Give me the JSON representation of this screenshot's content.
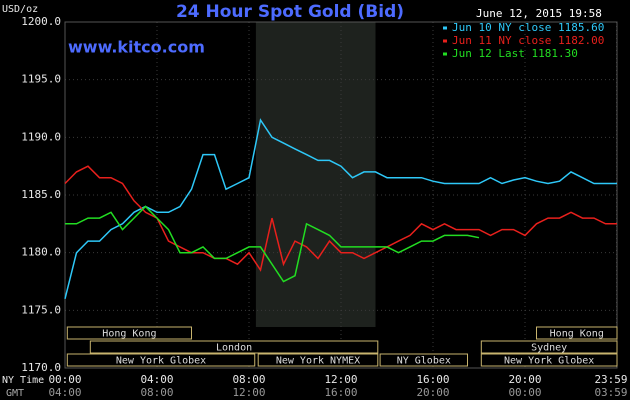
{
  "chart_data": {
    "type": "line",
    "title": "24 Hour Spot Gold (Bid)",
    "subtitle": "www.kitco.com",
    "timestamp": "June 12, 2015 19:58",
    "y_label": "USD/oz",
    "x_label": "NY Time",
    "x2_label": "GMT",
    "x": [
      0,
      0.5,
      1,
      1.5,
      2,
      2.5,
      3,
      3.5,
      4,
      4.5,
      5,
      5.5,
      6,
      6.5,
      7,
      7.5,
      8,
      8.5,
      9,
      9.5,
      10,
      10.5,
      11,
      11.5,
      12,
      12.5,
      13,
      13.5,
      14,
      14.5,
      15,
      15.5,
      16,
      16.5,
      17,
      17.5,
      18,
      18.5,
      19,
      19.5,
      20,
      20.5,
      21,
      21.5,
      22,
      22.5,
      23,
      23.5,
      24
    ],
    "xlim": [
      0,
      24
    ],
    "xticks": [
      {
        "value": 0,
        "label": "00:00"
      },
      {
        "value": 4,
        "label": "04:00"
      },
      {
        "value": 8,
        "label": "08:00"
      },
      {
        "value": 12,
        "label": "12:00"
      },
      {
        "value": 16,
        "label": "16:00"
      },
      {
        "value": 20,
        "label": "20:00"
      },
      {
        "value": 23.98,
        "label": "23:59"
      }
    ],
    "x2tick_labels": [
      "04:00",
      "08:00",
      "12:00",
      "16:00",
      "20:00",
      "00:00",
      "03:59"
    ],
    "ylim": [
      1170,
      1200
    ],
    "yticks": [
      {
        "value": 1170,
        "label": "1170.0"
      },
      {
        "value": 1175,
        "label": "1175.0"
      },
      {
        "value": 1180,
        "label": "1180.0"
      },
      {
        "value": 1185,
        "label": "1185.0"
      },
      {
        "value": 1190,
        "label": "1190.0"
      },
      {
        "value": 1195,
        "label": "1195.0"
      },
      {
        "value": 1200,
        "label": "1200.0"
      }
    ],
    "grid": true,
    "highlight_xlim": [
      8.3,
      13.5
    ],
    "sessions": [
      {
        "label": "Hong Kong",
        "start": 0.1,
        "end": 5.5,
        "row": 0
      },
      {
        "label": "Hong Kong",
        "start": 20.5,
        "end": 24,
        "row": 0
      },
      {
        "label": "London",
        "start": 1.1,
        "end": 13.6,
        "row": 1
      },
      {
        "label": "Sydney",
        "start": 18.1,
        "end": 24,
        "row": 1
      },
      {
        "label": "New York Globex",
        "start": 0.1,
        "end": 8.25,
        "row": 2
      },
      {
        "label": "New York NYMEX",
        "start": 8.4,
        "end": 13.6,
        "row": 2
      },
      {
        "label": "NY Globex",
        "start": 13.7,
        "end": 17.5,
        "row": 2
      },
      {
        "label": "New York Globex",
        "start": 18.1,
        "end": 24,
        "row": 2
      }
    ],
    "series": [
      {
        "name": "Jun 10 NY close 1185.60",
        "color": "#2ec8f8",
        "values": [
          1176,
          1180,
          1181,
          1181,
          1182,
          1182.5,
          1183.5,
          1184,
          1183.5,
          1183.5,
          1184,
          1185.5,
          1188.5,
          1188.5,
          1185.5,
          1186,
          1186.5,
          1191.5,
          1190,
          1189.5,
          1189,
          1188.5,
          1188,
          1188,
          1187.5,
          1186.5,
          1187,
          1187,
          1186.5,
          1186.5,
          1186.5,
          1186.5,
          1186.2,
          1186,
          1186,
          1186,
          1186,
          1186.5,
          1186,
          1186.3,
          1186.5,
          1186.2,
          1186,
          1186.2,
          1187,
          1186.5,
          1186,
          1186,
          1186
        ]
      },
      {
        "name": "Jun 11 NY close 1182.00",
        "color": "#e8201c",
        "values": [
          1186,
          1187,
          1187.5,
          1186.5,
          1186.5,
          1186,
          1184.5,
          1183.5,
          1183,
          1181,
          1180.5,
          1180,
          1180,
          1179.5,
          1179.5,
          1179,
          1180,
          1178.5,
          1183,
          1179,
          1181,
          1180.5,
          1179.5,
          1181,
          1180,
          1180,
          1179.5,
          1180,
          1180.5,
          1181,
          1181.5,
          1182.5,
          1182,
          1182.5,
          1182,
          1182,
          1182,
          1181.5,
          1182,
          1182,
          1181.5,
          1182.5,
          1183,
          1183,
          1183.5,
          1183,
          1183,
          1182.5,
          1182.5
        ]
      },
      {
        "name": "Jun 12 Last 1181.30",
        "color": "#22dd22",
        "values": [
          1182.5,
          1182.5,
          1183,
          1183,
          1183.5,
          1182,
          1183,
          1184,
          1183,
          1182,
          1180,
          1180,
          1180.5,
          1179.5,
          1179.5,
          1180,
          1180.5,
          1180.5,
          1179,
          1177.5,
          1178,
          1182.5,
          1182,
          1181.5,
          1180.5,
          1180.5,
          1180.5,
          1180.5,
          1180.5,
          1180,
          1180.5,
          1181,
          1181,
          1181.5,
          1181.5,
          1181.5,
          1181.3,
          null,
          null,
          null,
          null,
          null,
          null,
          null,
          null,
          null,
          null,
          null,
          null
        ]
      }
    ]
  }
}
